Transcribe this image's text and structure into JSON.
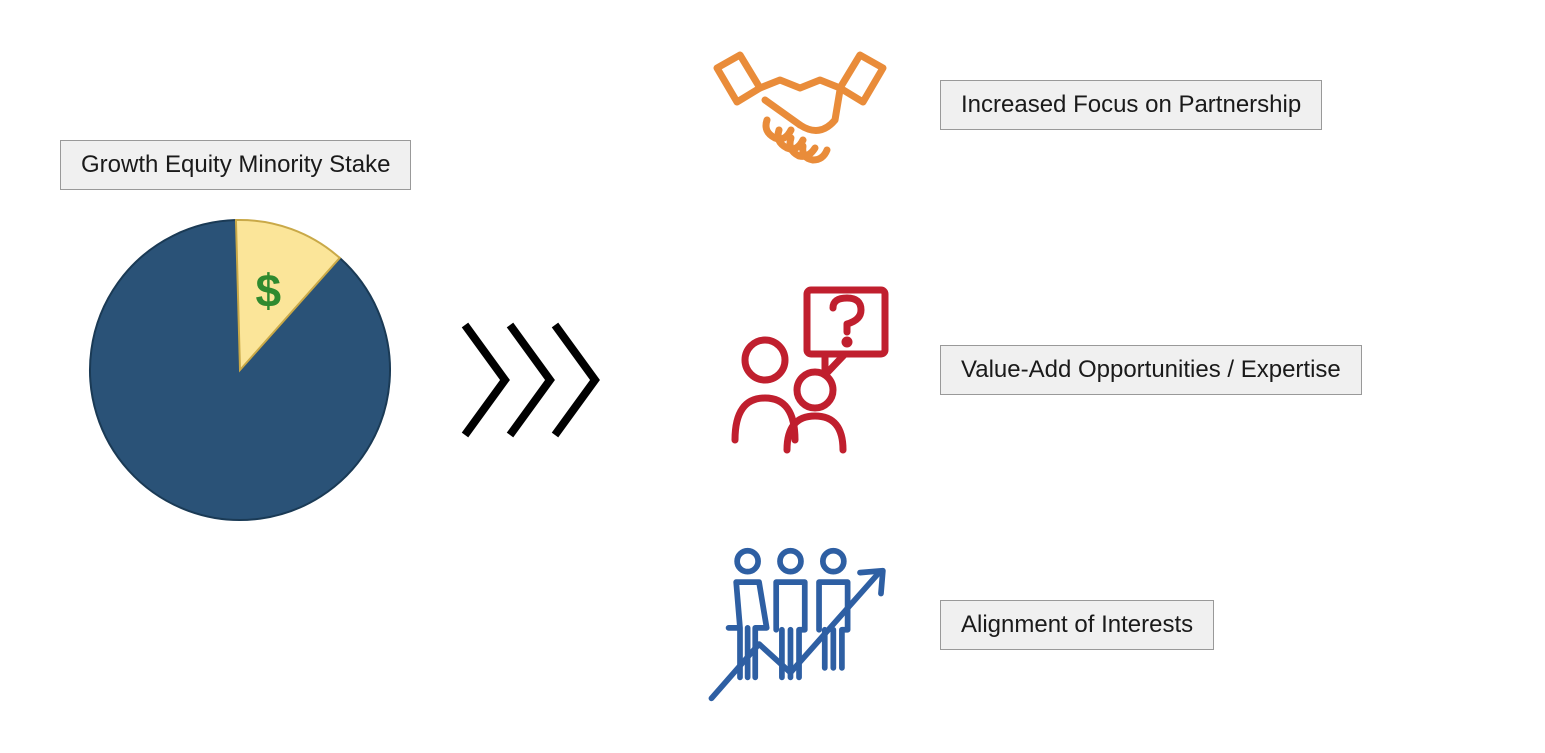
{
  "type": "infographic",
  "background_color": "#ffffff",
  "left": {
    "label": "Growth Equity Minority Stake",
    "pie": {
      "type": "pie",
      "slices": [
        {
          "value": 88,
          "color": "#2a5277",
          "stroke": "#1a3a55"
        },
        {
          "value": 12,
          "color": "#fbe599",
          "stroke": "#c9a948"
        }
      ],
      "radius": 150,
      "dollar_symbol": "$",
      "dollar_color": "#2f8a2f"
    }
  },
  "arrows": {
    "count": 3,
    "color": "#000000",
    "stroke_width": 8
  },
  "rows": [
    {
      "label": "Increased Focus on Partnership",
      "icon": {
        "name": "handshake-icon",
        "color": "#e98c3a",
        "stroke_width": 7
      }
    },
    {
      "label": "Value-Add Opportunities / Expertise",
      "icon": {
        "name": "people-question-icon",
        "color": "#c01f2e",
        "stroke_width": 7
      }
    },
    {
      "label": "Alignment of Interests",
      "icon": {
        "name": "people-growth-icon",
        "color": "#2e5fa3",
        "stroke_width": 6
      }
    }
  ],
  "label_box": {
    "background": "#f0f0f0",
    "border_color": "#999999",
    "font_size": 24,
    "text_color": "#1a1a1a"
  }
}
